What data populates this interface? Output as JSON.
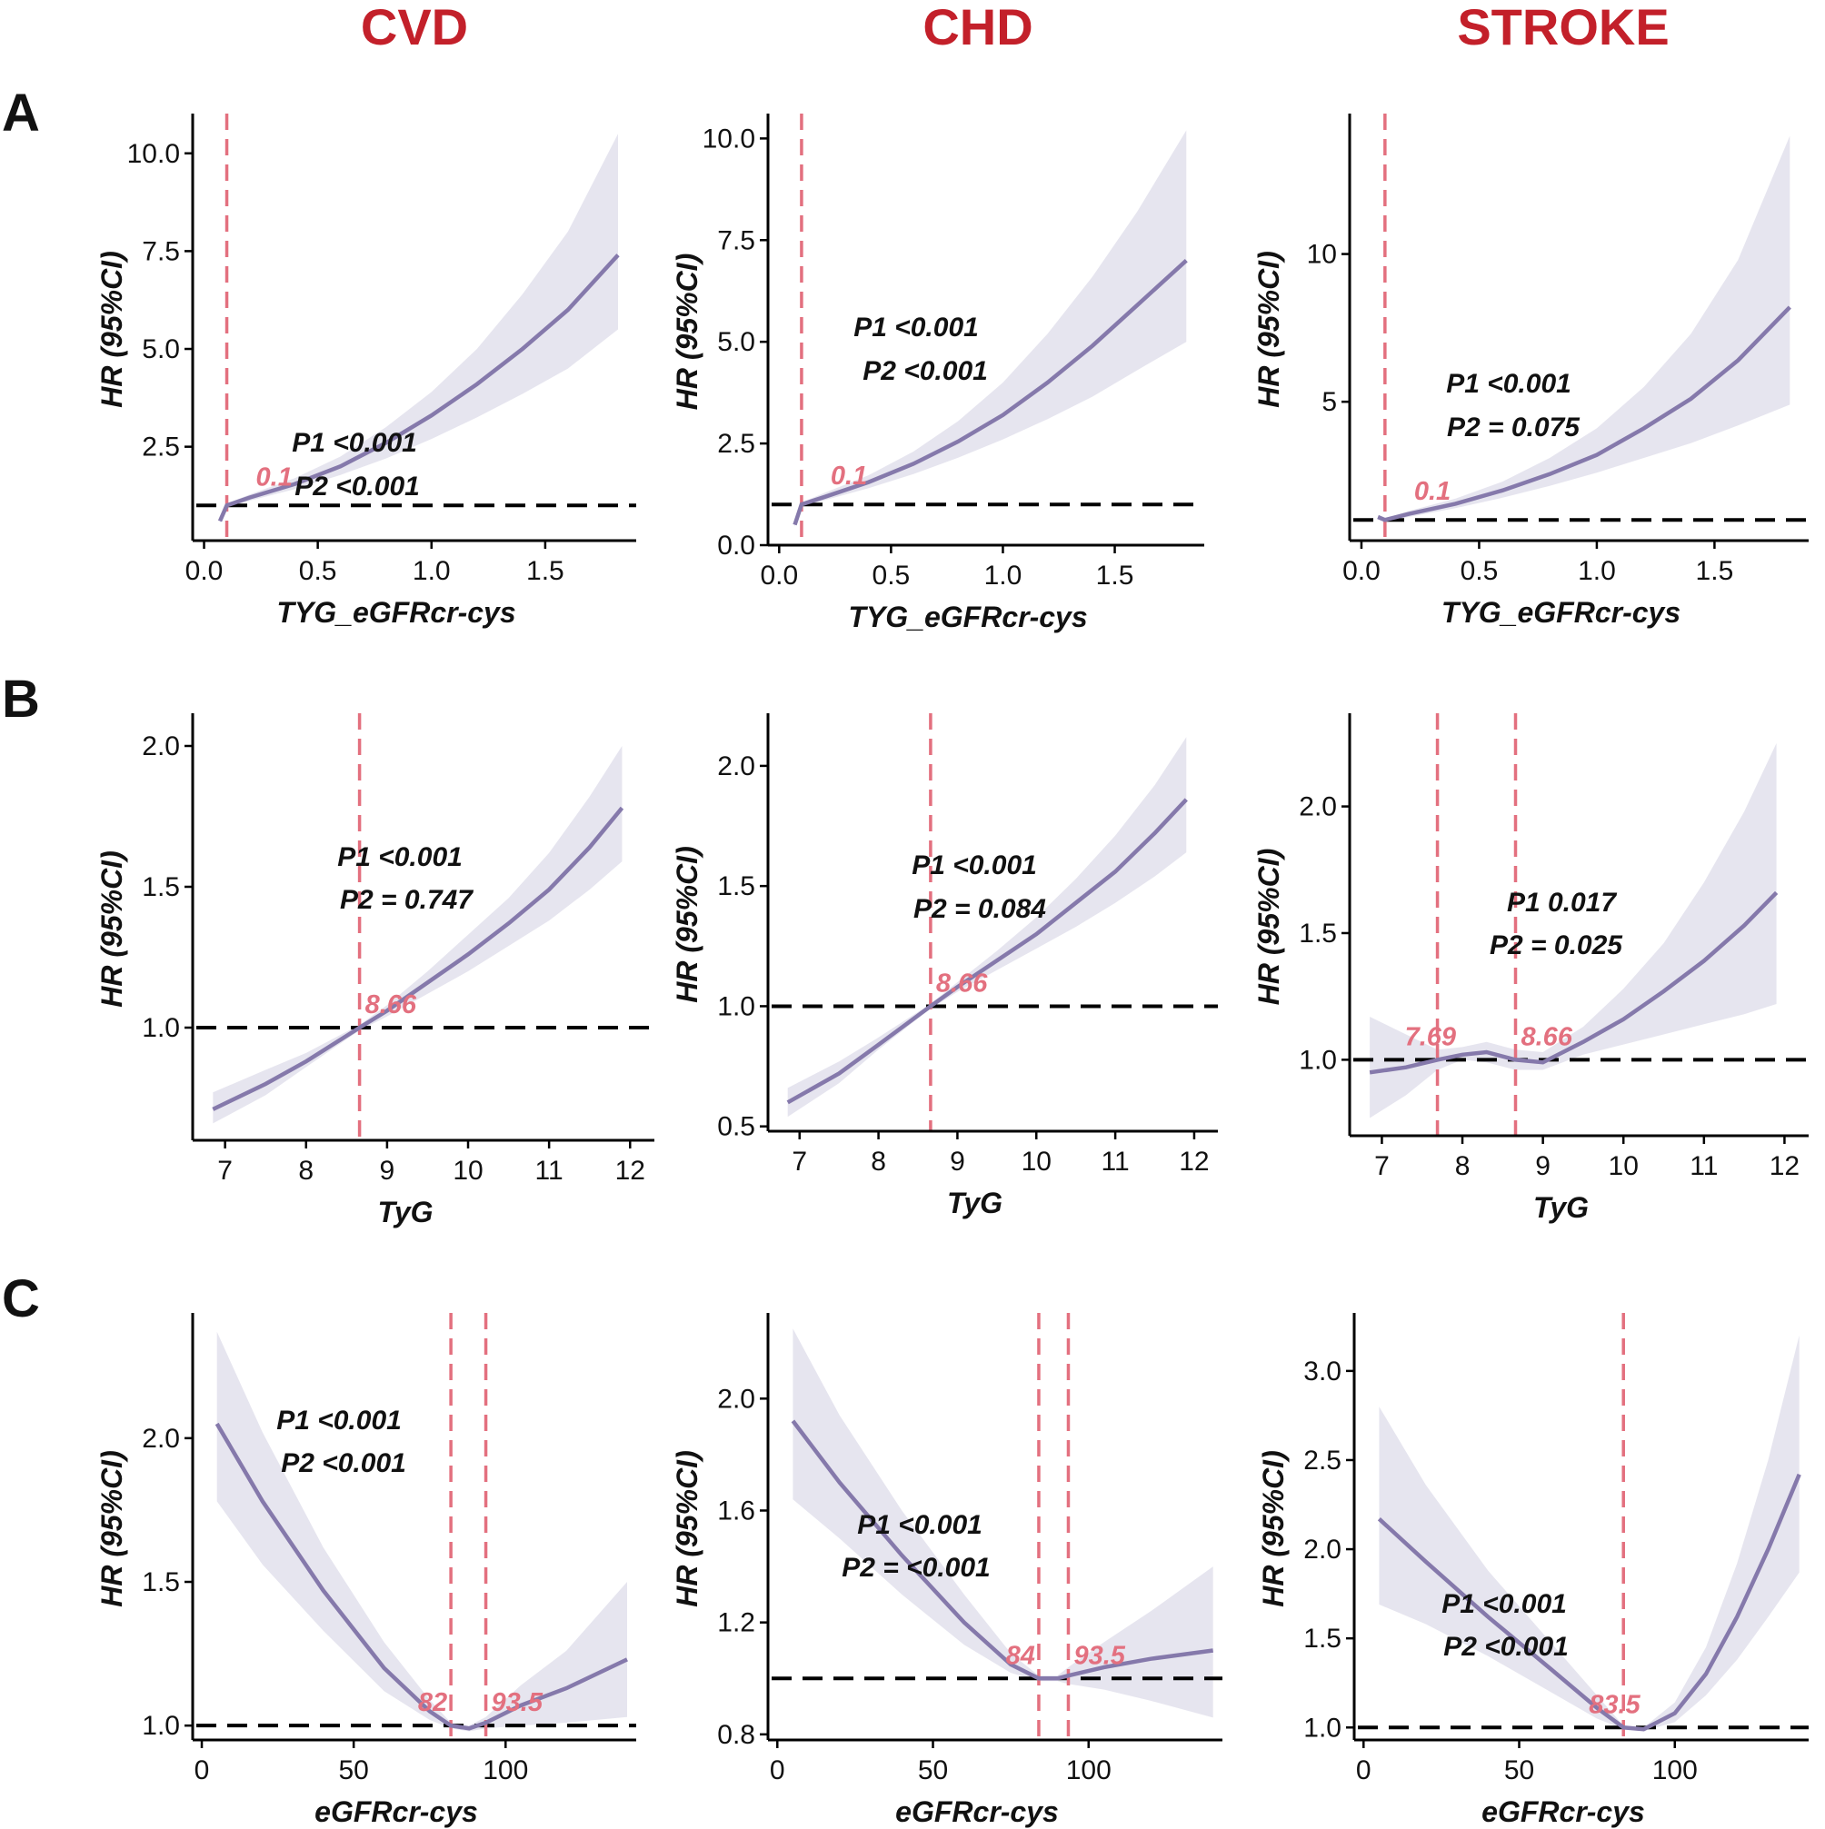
{
  "column_titles": [
    "CVD",
    "CHD",
    "STROKE"
  ],
  "row_labels": [
    "A",
    "B",
    "C"
  ],
  "y_axis_label": "HR (95%CI)",
  "colors": {
    "column_title": "#c3202a",
    "curve": "#8579ab",
    "ci_band": "#e6e5ef",
    "knot_line": "#e3707f",
    "reference_line": "#000000"
  },
  "chart_data": [
    {
      "type": "line",
      "row": "A",
      "column": "CVD",
      "xlabel": "TYG_eGFRcr-cys",
      "ylabel": "HR (95%CI)",
      "xlim": [
        -0.05,
        1.9
      ],
      "ylim": [
        0.1,
        10.9
      ],
      "xticks": [
        0.0,
        0.5,
        1.0,
        1.5
      ],
      "xtick_labels": [
        "0.0",
        "0.5",
        "1.0",
        "1.5"
      ],
      "yticks": [
        2.5,
        5.0,
        7.5,
        10.0
      ],
      "ytick_labels": [
        "2.5",
        "5.0",
        "7.5",
        "10.0"
      ],
      "reference_y": 1.0,
      "knots": [
        {
          "x": 0.1,
          "label": "0.1"
        }
      ],
      "p_values": {
        "p1": "P1  <0.001",
        "p2": "P2  <0.001"
      },
      "curve": {
        "x": [
          0.07,
          0.1,
          0.2,
          0.4,
          0.6,
          0.8,
          1.0,
          1.2,
          1.4,
          1.6,
          1.82
        ],
        "y": [
          0.6,
          1.0,
          1.2,
          1.55,
          2.0,
          2.6,
          3.3,
          4.1,
          5.0,
          6.0,
          7.4
        ],
        "lo": [
          0.55,
          0.95,
          1.12,
          1.42,
          1.78,
          2.2,
          2.7,
          3.25,
          3.85,
          4.5,
          5.5
        ],
        "hi": [
          0.65,
          1.05,
          1.28,
          1.7,
          2.25,
          3.0,
          3.9,
          5.0,
          6.4,
          8.0,
          10.5
        ]
      }
    },
    {
      "type": "line",
      "row": "A",
      "column": "CHD",
      "xlabel": "TYG_eGFRcr-cys",
      "ylabel": "HR (95%CI)",
      "xlim": [
        -0.05,
        1.9
      ],
      "ylim": [
        0.0,
        10.5
      ],
      "xticks": [
        0.0,
        0.5,
        1.0,
        1.5
      ],
      "xtick_labels": [
        "0.0",
        "0.5",
        "1.0",
        "1.5"
      ],
      "yticks": [
        0.0,
        2.5,
        5.0,
        7.5,
        10.0
      ],
      "ytick_labels": [
        "0.0",
        "2.5",
        "5.0",
        "7.5",
        "10.0"
      ],
      "reference_y": 1.0,
      "knots": [
        {
          "x": 0.1,
          "label": "0.1"
        }
      ],
      "p_values": {
        "p1": "P1  <0.001",
        "p2": "P2 <0.001"
      },
      "curve": {
        "x": [
          0.07,
          0.1,
          0.2,
          0.4,
          0.6,
          0.8,
          1.0,
          1.2,
          1.4,
          1.6,
          1.82
        ],
        "y": [
          0.5,
          1.0,
          1.18,
          1.55,
          2.0,
          2.55,
          3.2,
          4.0,
          4.9,
          5.9,
          7.0
        ],
        "lo": [
          0.45,
          0.95,
          1.1,
          1.4,
          1.75,
          2.15,
          2.6,
          3.1,
          3.65,
          4.3,
          5.0
        ],
        "hi": [
          0.55,
          1.05,
          1.28,
          1.72,
          2.3,
          3.05,
          4.0,
          5.2,
          6.6,
          8.2,
          10.2
        ]
      }
    },
    {
      "type": "line",
      "row": "A",
      "column": "STROKE",
      "xlabel": "TYG_eGFRcr-cys",
      "ylabel": "HR (95%CI)",
      "xlim": [
        -0.05,
        1.9
      ],
      "ylim": [
        0.3,
        14.6
      ],
      "xticks": [
        0.0,
        0.5,
        1.0,
        1.5
      ],
      "xtick_labels": [
        "0.0",
        "0.5",
        "1.0",
        "1.5"
      ],
      "yticks": [
        5,
        10
      ],
      "ytick_labels": [
        "5",
        "10"
      ],
      "reference_y": 1.0,
      "knots": [
        {
          "x": 0.1,
          "label": "0.1"
        }
      ],
      "p_values": {
        "p1": "P1  <0.001",
        "p2": "P2 = 0.075"
      },
      "curve": {
        "x": [
          0.07,
          0.1,
          0.2,
          0.4,
          0.6,
          0.8,
          1.0,
          1.2,
          1.4,
          1.6,
          1.82
        ],
        "y": [
          1.1,
          1.0,
          1.2,
          1.55,
          2.0,
          2.55,
          3.2,
          4.1,
          5.1,
          6.4,
          8.2
        ],
        "lo": [
          1.05,
          0.95,
          1.1,
          1.4,
          1.75,
          2.15,
          2.6,
          3.1,
          3.6,
          4.2,
          4.9
        ],
        "hi": [
          1.15,
          1.05,
          1.3,
          1.72,
          2.3,
          3.1,
          4.1,
          5.5,
          7.3,
          9.8,
          14.0
        ]
      }
    },
    {
      "type": "line",
      "row": "B",
      "column": "CVD",
      "xlabel": "TyG",
      "ylabel": "HR (95%CI)",
      "xlim": [
        6.6,
        12.3
      ],
      "ylim": [
        0.6,
        2.1
      ],
      "xticks": [
        7,
        8,
        9,
        10,
        11,
        12
      ],
      "xtick_labels": [
        "7",
        "8",
        "9",
        "10",
        "11",
        "12"
      ],
      "yticks": [
        1.0,
        1.5,
        2.0
      ],
      "ytick_labels": [
        "1.0",
        "1.5",
        "2.0"
      ],
      "reference_y": 1.0,
      "knots": [
        {
          "x": 8.66,
          "label": "8.66"
        }
      ],
      "p_values": {
        "p1": "P1  <0.001",
        "p2": "P2 = 0.747"
      },
      "curve": {
        "x": [
          6.85,
          7.5,
          8.0,
          8.66,
          9.0,
          9.5,
          10.0,
          10.5,
          11.0,
          11.5,
          11.9
        ],
        "y": [
          0.71,
          0.8,
          0.88,
          1.0,
          1.06,
          1.16,
          1.26,
          1.37,
          1.49,
          1.64,
          1.78
        ],
        "lo": [
          0.66,
          0.76,
          0.86,
          0.99,
          1.04,
          1.12,
          1.2,
          1.29,
          1.38,
          1.49,
          1.59
        ],
        "hi": [
          0.77,
          0.85,
          0.91,
          1.01,
          1.08,
          1.2,
          1.33,
          1.46,
          1.62,
          1.82,
          2.0
        ]
      }
    },
    {
      "type": "line",
      "row": "B",
      "column": "CHD",
      "xlabel": "TyG",
      "ylabel": "HR (95%CI)",
      "xlim": [
        6.6,
        12.3
      ],
      "ylim": [
        0.48,
        2.2
      ],
      "xticks": [
        7,
        8,
        9,
        10,
        11,
        12
      ],
      "xtick_labels": [
        "7",
        "8",
        "9",
        "10",
        "11",
        "12"
      ],
      "yticks": [
        0.5,
        1.0,
        1.5,
        2.0
      ],
      "ytick_labels": [
        "0.5",
        "1.0",
        "1.5",
        "2.0"
      ],
      "reference_y": 1.0,
      "knots": [
        {
          "x": 8.66,
          "label": "8.66"
        }
      ],
      "p_values": {
        "p1": "P1  <0.001",
        "p2": "P2 = 0.084"
      },
      "curve": {
        "x": [
          6.85,
          7.5,
          8.0,
          8.66,
          9.0,
          9.5,
          10.0,
          10.5,
          11.0,
          11.5,
          11.9
        ],
        "y": [
          0.6,
          0.72,
          0.84,
          1.0,
          1.08,
          1.19,
          1.3,
          1.43,
          1.56,
          1.72,
          1.86
        ],
        "lo": [
          0.54,
          0.68,
          0.82,
          0.99,
          1.06,
          1.15,
          1.24,
          1.33,
          1.43,
          1.54,
          1.64
        ],
        "hi": [
          0.66,
          0.77,
          0.87,
          1.01,
          1.1,
          1.23,
          1.37,
          1.53,
          1.71,
          1.92,
          2.12
        ]
      }
    },
    {
      "type": "line",
      "row": "B",
      "column": "STROKE",
      "xlabel": "TyG",
      "ylabel": "HR (95%CI)",
      "xlim": [
        6.6,
        12.3
      ],
      "ylim": [
        0.7,
        2.35
      ],
      "xticks": [
        7,
        8,
        9,
        10,
        11,
        12
      ],
      "xtick_labels": [
        "7",
        "8",
        "9",
        "10",
        "11",
        "12"
      ],
      "yticks": [
        1.0,
        1.5,
        2.0
      ],
      "ytick_labels": [
        "1.0",
        "1.5",
        "2.0"
      ],
      "reference_y": 1.0,
      "knots": [
        {
          "x": 7.69,
          "label": "7.69"
        },
        {
          "x": 8.66,
          "label": "8.66"
        }
      ],
      "p_values": {
        "p1": "P1  0.017",
        "p2": "P2 = 0.025"
      },
      "curve": {
        "x": [
          6.85,
          7.3,
          7.69,
          8.0,
          8.3,
          8.66,
          9.0,
          9.5,
          10.0,
          10.5,
          11.0,
          11.5,
          11.9
        ],
        "y": [
          0.95,
          0.97,
          1.0,
          1.02,
          1.03,
          1.0,
          0.99,
          1.07,
          1.16,
          1.27,
          1.39,
          1.53,
          1.66
        ],
        "lo": [
          0.77,
          0.86,
          0.96,
          1.0,
          0.99,
          0.96,
          0.96,
          1.02,
          1.06,
          1.1,
          1.14,
          1.18,
          1.22
        ],
        "hi": [
          1.17,
          1.1,
          1.04,
          1.05,
          1.07,
          1.04,
          1.03,
          1.13,
          1.28,
          1.46,
          1.7,
          1.98,
          2.25
        ]
      }
    },
    {
      "type": "line",
      "row": "C",
      "column": "CVD",
      "xlabel": "eGFRcr-cys",
      "ylabel": "HR (95%CI)",
      "xlim": [
        -3,
        143
      ],
      "ylim": [
        0.95,
        2.42
      ],
      "xticks": [
        0,
        50,
        100
      ],
      "xtick_labels": [
        "0",
        "50",
        "100"
      ],
      "yticks": [
        1.0,
        1.5,
        2.0
      ],
      "ytick_labels": [
        "1.0",
        "1.5",
        "2.0"
      ],
      "reference_y": 1.0,
      "knots": [
        {
          "x": 82,
          "label": "82"
        },
        {
          "x": 93.5,
          "label": "93.5"
        }
      ],
      "p_values": {
        "p1": "P1  <0.001",
        "p2": "P2  <0.001"
      },
      "curve": {
        "x": [
          5,
          20,
          40,
          60,
          75,
          82,
          88,
          93.5,
          105,
          120,
          140
        ],
        "y": [
          2.05,
          1.78,
          1.47,
          1.2,
          1.05,
          1.0,
          0.99,
          1.01,
          1.07,
          1.13,
          1.23
        ],
        "lo": [
          1.78,
          1.56,
          1.33,
          1.12,
          1.02,
          0.99,
          0.98,
          0.99,
          1.0,
          1.01,
          1.03
        ],
        "hi": [
          2.37,
          2.02,
          1.62,
          1.29,
          1.09,
          1.01,
          1.0,
          1.03,
          1.14,
          1.26,
          1.5
        ]
      }
    },
    {
      "type": "line",
      "row": "C",
      "column": "CHD",
      "xlabel": "eGFRcr-cys",
      "ylabel": "HR (95%CI)",
      "xlim": [
        -3,
        143
      ],
      "ylim": [
        0.78,
        2.29
      ],
      "xticks": [
        0,
        50,
        100
      ],
      "xtick_labels": [
        "0",
        "50",
        "100"
      ],
      "yticks": [
        0.8,
        1.2,
        1.6,
        2.0
      ],
      "ytick_labels": [
        "0.8",
        "1.2",
        "1.6",
        "2.0"
      ],
      "reference_y": 1.0,
      "knots": [
        {
          "x": 84,
          "label": "84"
        },
        {
          "x": 93.5,
          "label": "93.5"
        }
      ],
      "p_values": {
        "p1": "P1  <0.001",
        "p2": "P2 = <0.001"
      },
      "curve": {
        "x": [
          5,
          20,
          40,
          60,
          75,
          84,
          90,
          93.5,
          105,
          120,
          140
        ],
        "y": [
          1.92,
          1.7,
          1.44,
          1.2,
          1.05,
          1.0,
          1.0,
          1.01,
          1.04,
          1.07,
          1.1
        ],
        "lo": [
          1.64,
          1.5,
          1.3,
          1.12,
          1.02,
          0.99,
          0.99,
          0.98,
          0.96,
          0.92,
          0.86
        ],
        "hi": [
          2.25,
          1.94,
          1.6,
          1.3,
          1.09,
          1.01,
          1.01,
          1.04,
          1.13,
          1.24,
          1.4
        ]
      }
    },
    {
      "type": "line",
      "row": "C",
      "column": "STROKE",
      "xlabel": "eGFRcr-cys",
      "ylabel": "HR (95%CI)",
      "xlim": [
        -3,
        143
      ],
      "ylim": [
        0.93,
        3.3
      ],
      "xticks": [
        0,
        50,
        100
      ],
      "xtick_labels": [
        "0",
        "50",
        "100"
      ],
      "yticks": [
        1.0,
        1.5,
        2.0,
        2.5,
        3.0
      ],
      "ytick_labels": [
        "1.0",
        "1.5",
        "2.0",
        "2.5",
        "3.0"
      ],
      "reference_y": 1.0,
      "knots": [
        {
          "x": 83.5,
          "label": "83.5"
        }
      ],
      "p_values": {
        "p1": "P1  <0.001",
        "p2": "P2  <0.001"
      },
      "curve": {
        "x": [
          5,
          20,
          40,
          60,
          75,
          83.5,
          90,
          100,
          110,
          120,
          130,
          140
        ],
        "y": [
          2.17,
          1.93,
          1.62,
          1.33,
          1.11,
          1.0,
          0.99,
          1.08,
          1.3,
          1.62,
          2.0,
          2.42
        ],
        "lo": [
          1.69,
          1.58,
          1.4,
          1.2,
          1.05,
          0.99,
          0.98,
          1.03,
          1.18,
          1.38,
          1.62,
          1.87
        ],
        "hi": [
          2.8,
          2.36,
          1.88,
          1.48,
          1.18,
          1.01,
          1.0,
          1.14,
          1.45,
          1.92,
          2.5,
          3.2
        ]
      }
    }
  ]
}
